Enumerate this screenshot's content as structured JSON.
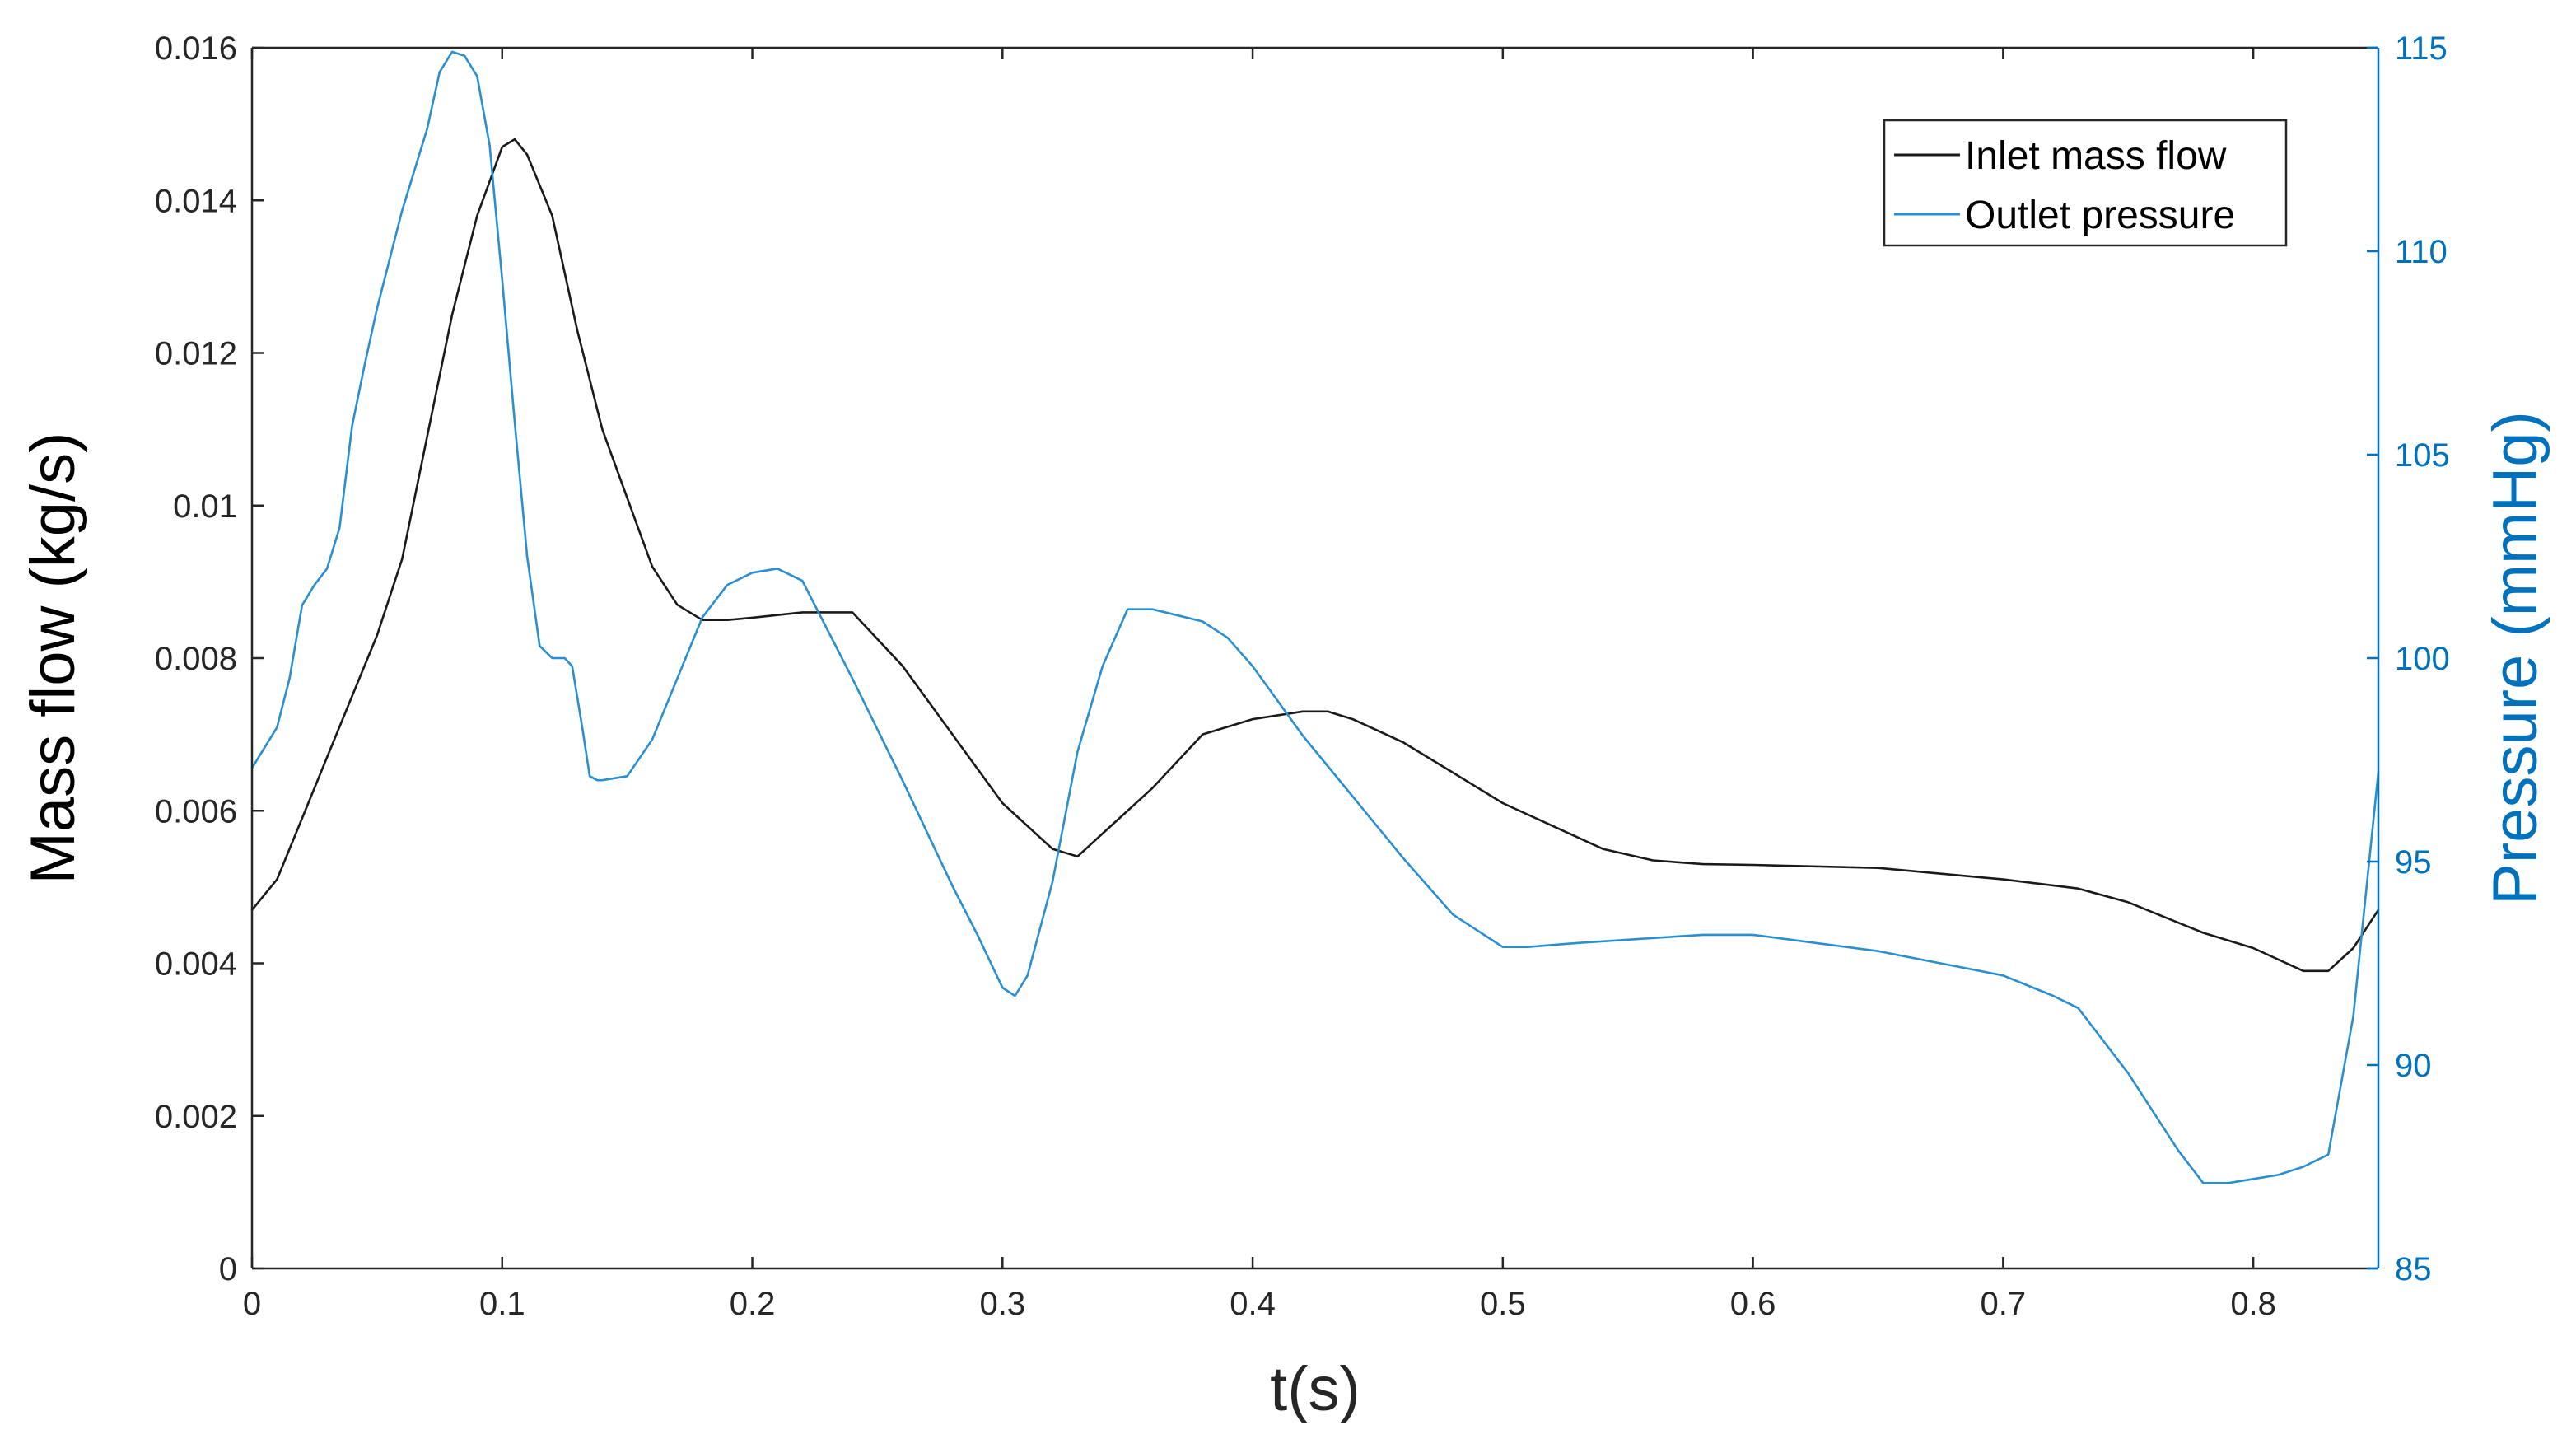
{
  "chart_data": {
    "type": "line",
    "xlabel": "t(s)",
    "ylabel_left": "Mass flow (kg/s)",
    "ylabel_right": "Pressure (mmHg)",
    "xlim": [
      0,
      0.85
    ],
    "ylim_left": [
      0,
      0.016
    ],
    "ylim_right": [
      85,
      115
    ],
    "x_ticks": [
      "0",
      "0.1",
      "0.2",
      "0.3",
      "0.4",
      "0.5",
      "0.6",
      "0.7",
      "0.8"
    ],
    "y_left_ticks": [
      "0",
      "0.002",
      "0.004",
      "0.006",
      "0.008",
      "0.01",
      "0.012",
      "0.014",
      "0.016"
    ],
    "y_right_ticks": [
      "85",
      "90",
      "95",
      "100",
      "105",
      "110",
      "115"
    ],
    "grid": false,
    "legend_position": "top-right",
    "colors": {
      "inlet": "#1a1a1a",
      "outlet": "#2a8fd0",
      "axis_left": "#262626",
      "axis_right": "#0072bd"
    },
    "series": [
      {
        "name": "Inlet mass flow",
        "axis": "left",
        "x": [
          0,
          0.01,
          0.02,
          0.03,
          0.04,
          0.05,
          0.06,
          0.07,
          0.08,
          0.09,
          0.1,
          0.105,
          0.11,
          0.12,
          0.13,
          0.14,
          0.15,
          0.16,
          0.17,
          0.18,
          0.19,
          0.2,
          0.22,
          0.24,
          0.26,
          0.28,
          0.3,
          0.32,
          0.33,
          0.34,
          0.36,
          0.38,
          0.4,
          0.42,
          0.43,
          0.44,
          0.46,
          0.48,
          0.5,
          0.52,
          0.54,
          0.56,
          0.58,
          0.6,
          0.65,
          0.7,
          0.73,
          0.75,
          0.78,
          0.8,
          0.82,
          0.83,
          0.84,
          0.85
        ],
        "y": [
          0.0047,
          0.0051,
          0.0059,
          0.0067,
          0.0075,
          0.0083,
          0.0093,
          0.0109,
          0.0125,
          0.0138,
          0.0147,
          0.0148,
          0.0146,
          0.0138,
          0.0123,
          0.011,
          0.0101,
          0.0092,
          0.0087,
          0.0085,
          0.0085,
          0.00853,
          0.0086,
          0.0086,
          0.0079,
          0.007,
          0.0061,
          0.0055,
          0.0054,
          0.0057,
          0.0063,
          0.007,
          0.0072,
          0.0073,
          0.0073,
          0.0072,
          0.0069,
          0.0065,
          0.0061,
          0.0058,
          0.0055,
          0.00535,
          0.0053,
          0.00529,
          0.00525,
          0.0051,
          0.00498,
          0.0048,
          0.0044,
          0.0042,
          0.0039,
          0.0039,
          0.0042,
          0.0047
        ]
      },
      {
        "name": "Outlet pressure",
        "axis": "right",
        "x": [
          0,
          0.01,
          0.015,
          0.02,
          0.025,
          0.03,
          0.035,
          0.04,
          0.045,
          0.05,
          0.06,
          0.07,
          0.075,
          0.08,
          0.085,
          0.09,
          0.095,
          0.1,
          0.105,
          0.11,
          0.115,
          0.12,
          0.125,
          0.128,
          0.132,
          0.135,
          0.138,
          0.14,
          0.15,
          0.16,
          0.17,
          0.18,
          0.19,
          0.2,
          0.21,
          0.22,
          0.24,
          0.26,
          0.28,
          0.29,
          0.3,
          0.305,
          0.31,
          0.32,
          0.33,
          0.34,
          0.35,
          0.36,
          0.38,
          0.39,
          0.4,
          0.42,
          0.44,
          0.46,
          0.48,
          0.5,
          0.51,
          0.53,
          0.58,
          0.6,
          0.65,
          0.7,
          0.72,
          0.73,
          0.75,
          0.77,
          0.78,
          0.79,
          0.8,
          0.81,
          0.82,
          0.83,
          0.84,
          0.85
        ],
        "y": [
          97.3,
          98.3,
          99.5,
          101.3,
          101.8,
          102.2,
          103.2,
          105.7,
          107.2,
          108.6,
          111,
          113,
          114.4,
          114.9,
          114.8,
          114.3,
          112.6,
          109.3,
          105.8,
          102.5,
          100.3,
          100,
          100,
          99.8,
          98.3,
          97.1,
          97,
          97,
          97.1,
          98,
          99.5,
          101,
          101.8,
          102.1,
          102.2,
          101.9,
          99.5,
          97,
          94.4,
          93.2,
          91.9,
          91.7,
          92.2,
          94.5,
          97.7,
          99.8,
          101.2,
          101.2,
          100.9,
          100.5,
          99.8,
          98.1,
          96.6,
          95.1,
          93.7,
          92.9,
          92.9,
          93,
          93.2,
          93.2,
          92.8,
          92.2,
          91.7,
          91.4,
          89.8,
          87.9,
          87.1,
          87.1,
          87.2,
          87.3,
          87.5,
          87.8,
          91.2,
          97.2
        ]
      }
    ]
  }
}
